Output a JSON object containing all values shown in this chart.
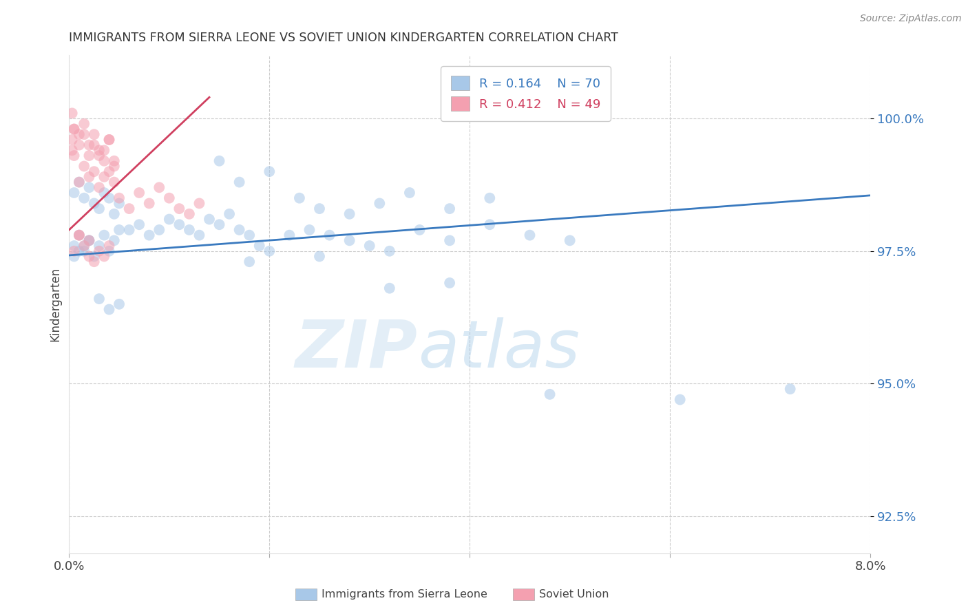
{
  "title": "IMMIGRANTS FROM SIERRA LEONE VS SOVIET UNION KINDERGARTEN CORRELATION CHART",
  "source": "Source: ZipAtlas.com",
  "ylabel": "Kindergarten",
  "yticks": [
    92.5,
    95.0,
    97.5,
    100.0
  ],
  "ytick_labels": [
    "92.5%",
    "95.0%",
    "97.5%",
    "100.0%"
  ],
  "xmin": 0.0,
  "xmax": 0.08,
  "ymin": 91.8,
  "ymax": 101.2,
  "legend_r1": "R = 0.164",
  "legend_n1": "N = 70",
  "legend_r2": "R = 0.412",
  "legend_n2": "N = 49",
  "label1": "Immigrants from Sierra Leone",
  "label2": "Soviet Union",
  "color1": "#a8c8e8",
  "color2": "#f4a0b0",
  "line_color1": "#3a7abf",
  "line_color2": "#d04060",
  "legend_color1": "#a8c8e8",
  "legend_color2": "#f4a0b0",
  "scatter1_x": [
    0.0005,
    0.001,
    0.0015,
    0.002,
    0.0025,
    0.003,
    0.0035,
    0.004,
    0.0045,
    0.005,
    0.0005,
    0.001,
    0.0015,
    0.002,
    0.0025,
    0.003,
    0.0035,
    0.004,
    0.0045,
    0.005,
    0.0005,
    0.001,
    0.0015,
    0.002,
    0.006,
    0.007,
    0.008,
    0.009,
    0.01,
    0.011,
    0.012,
    0.013,
    0.014,
    0.015,
    0.016,
    0.017,
    0.018,
    0.019,
    0.02,
    0.022,
    0.024,
    0.026,
    0.028,
    0.03,
    0.032,
    0.035,
    0.038,
    0.042,
    0.046,
    0.05,
    0.015,
    0.017,
    0.02,
    0.023,
    0.025,
    0.028,
    0.031,
    0.034,
    0.038,
    0.042,
    0.003,
    0.004,
    0.005,
    0.018,
    0.025,
    0.032,
    0.038,
    0.048,
    0.061,
    0.072
  ],
  "scatter1_y": [
    98.6,
    98.8,
    98.5,
    98.7,
    98.4,
    98.3,
    98.6,
    98.5,
    98.2,
    98.4,
    97.6,
    97.8,
    97.5,
    97.7,
    97.4,
    97.6,
    97.8,
    97.5,
    97.7,
    97.9,
    97.4,
    97.5,
    97.6,
    97.7,
    97.9,
    98.0,
    97.8,
    97.9,
    98.1,
    98.0,
    97.9,
    97.8,
    98.1,
    98.0,
    98.2,
    97.9,
    97.8,
    97.6,
    97.5,
    97.8,
    97.9,
    97.8,
    97.7,
    97.6,
    97.5,
    97.9,
    97.7,
    98.0,
    97.8,
    97.7,
    99.2,
    98.8,
    99.0,
    98.5,
    98.3,
    98.2,
    98.4,
    98.6,
    98.3,
    98.5,
    96.6,
    96.4,
    96.5,
    97.3,
    97.4,
    96.8,
    96.9,
    94.8,
    94.7,
    94.9
  ],
  "scatter2_x": [
    0.0003,
    0.0005,
    0.001,
    0.0015,
    0.002,
    0.0025,
    0.003,
    0.0035,
    0.004,
    0.0045,
    0.0003,
    0.0005,
    0.001,
    0.0015,
    0.002,
    0.0025,
    0.003,
    0.0035,
    0.004,
    0.0045,
    0.0003,
    0.0005,
    0.001,
    0.0015,
    0.002,
    0.0025,
    0.003,
    0.0035,
    0.004,
    0.0045,
    0.005,
    0.006,
    0.007,
    0.008,
    0.009,
    0.01,
    0.011,
    0.012,
    0.013,
    0.001,
    0.0005,
    0.001,
    0.0015,
    0.002,
    0.0025,
    0.003,
    0.0035,
    0.004,
    0.002
  ],
  "scatter2_y": [
    100.1,
    99.8,
    99.5,
    99.7,
    99.3,
    99.5,
    99.4,
    99.2,
    99.6,
    99.1,
    99.4,
    99.3,
    98.8,
    99.1,
    98.9,
    99.0,
    98.7,
    98.9,
    99.0,
    98.8,
    99.6,
    99.8,
    99.7,
    99.9,
    99.5,
    99.7,
    99.3,
    99.4,
    99.6,
    99.2,
    98.5,
    98.3,
    98.6,
    98.4,
    98.7,
    98.5,
    98.3,
    98.2,
    98.4,
    97.8,
    97.5,
    97.8,
    97.6,
    97.4,
    97.3,
    97.5,
    97.4,
    97.6,
    97.7
  ],
  "line1_x0": 0.0,
  "line1_x1": 0.08,
  "line1_y0": 97.42,
  "line1_y1": 98.55,
  "line2_x0": 0.0,
  "line2_x1": 0.014,
  "line2_y0": 97.9,
  "line2_y1": 100.4,
  "watermark_zip": "ZIP",
  "watermark_atlas": "atlas",
  "background_color": "#ffffff",
  "grid_color": "#cccccc",
  "title_color": "#333333",
  "axis_label_color": "#444444",
  "ytick_color": "#3a7abf",
  "source_color": "#888888"
}
